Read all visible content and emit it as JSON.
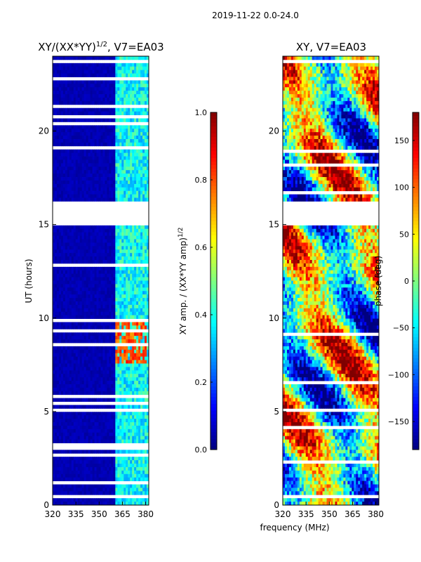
{
  "suptitle": "2019-11-22 0.0-24.0",
  "xlabel": "frequency (MHz)",
  "colormap": [
    "#00007f",
    "#0000ff",
    "#007fff",
    "#00ffff",
    "#7fff7f",
    "#ffff00",
    "#ff7f00",
    "#ff0000",
    "#7f0000"
  ],
  "chart_data": [
    {
      "type": "heatmap",
      "title_main": "XY/(XX*YY)",
      "title_sup": "1/2",
      "title_tail": ", V7=EA03",
      "ylabel": "UT (hours)",
      "xlim": [
        320,
        382
      ],
      "ylim": [
        0,
        24
      ],
      "xticks": [
        320,
        335,
        350,
        365,
        380
      ],
      "yticks": [
        0,
        5,
        10,
        15,
        20
      ],
      "colorbar_label_main": "XY amp. / (XX*YY amp)",
      "colorbar_label_sup": "1/2",
      "clim": [
        0.0,
        1.0
      ],
      "colorbar_ticks": [
        "0.0",
        "0.2",
        "0.4",
        "0.6",
        "0.8",
        "1.0"
      ],
      "colorbar_tick_values": [
        0.0,
        0.2,
        0.4,
        0.6,
        0.8,
        1.0
      ],
      "data_gaps_hours": [
        [
          16.2,
          14.9
        ],
        [
          5.2,
          4.9
        ]
      ],
      "notes": "mostly low amplitude (~0.05) except band 360-382 MHz (~0.3-0.5) with high (~0.8) patch 7.5-9.8 h"
    },
    {
      "type": "heatmap",
      "title": "XY, V7=EA03",
      "xlim": [
        320,
        382
      ],
      "ylim": [
        0,
        24
      ],
      "xticks": [
        320,
        335,
        350,
        365,
        380
      ],
      "yticks": [
        0,
        5,
        10,
        15,
        20
      ],
      "colorbar_label": "phase (deg)",
      "clim": [
        -180,
        180
      ],
      "colorbar_ticks": [
        "−150",
        "−100",
        "−50",
        "0",
        "50",
        "100",
        "150"
      ],
      "colorbar_tick_values": [
        -150,
        -100,
        -50,
        0,
        50,
        100,
        150
      ],
      "data_gaps_hours": [
        [
          16.2,
          14.9
        ],
        [
          5.2,
          4.9
        ]
      ],
      "notes": "phase spans full range -180..180 deg with structured bands"
    }
  ]
}
